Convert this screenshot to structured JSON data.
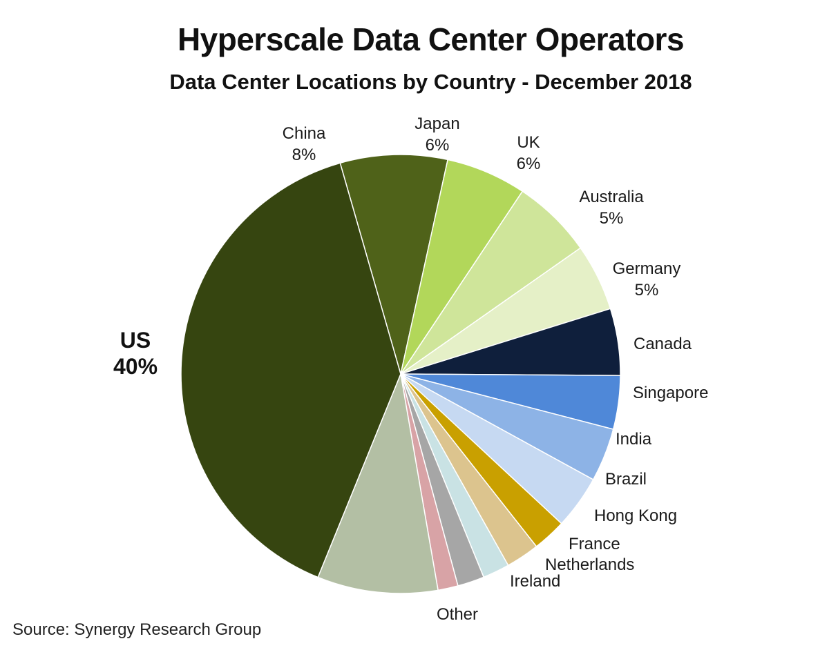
{
  "chart_data": {
    "type": "pie",
    "title": "Hyperscale Data Center Operators",
    "subtitle": "Data Center Locations by Country - December 2018",
    "source": "Source: Synergy Research Group",
    "slices": [
      {
        "label": "China",
        "value_label": "8%",
        "value": 8,
        "color": "#4f6219"
      },
      {
        "label": "Japan",
        "value_label": "6%",
        "value": 6,
        "color": "#b2d75a"
      },
      {
        "label": "UK",
        "value_label": "6%",
        "value": 6,
        "color": "#cfe59a"
      },
      {
        "label": "Australia",
        "value_label": "5%",
        "value": 5,
        "color": "#e5f0c7"
      },
      {
        "label": "Germany",
        "value_label": "5%",
        "value": 5,
        "color": "#0f1f3c"
      },
      {
        "label": "Canada",
        "value_label": "",
        "value": 4,
        "color": "#4f88d8"
      },
      {
        "label": "Singapore",
        "value_label": "",
        "value": 4,
        "color": "#8db3e6"
      },
      {
        "label": "India",
        "value_label": "",
        "value": 4,
        "color": "#c6d9f2"
      },
      {
        "label": "Brazil",
        "value_label": "",
        "value": 2.5,
        "color": "#c9a000"
      },
      {
        "label": "Hong Kong",
        "value_label": "",
        "value": 2.5,
        "color": "#dcc48e"
      },
      {
        "label": "France",
        "value_label": "",
        "value": 2,
        "color": "#c9e2e4"
      },
      {
        "label": "Netherlands",
        "value_label": "",
        "value": 2,
        "color": "#a6a6a6"
      },
      {
        "label": "Ireland",
        "value_label": "",
        "value": 1.5,
        "color": "#d8a3a6"
      },
      {
        "label": "Other",
        "value_label": "",
        "value": 9,
        "color": "#b3bfa4"
      },
      {
        "label": "US",
        "value_label": "40%",
        "value": 40,
        "color": "#364510",
        "emphasis": true
      }
    ]
  }
}
